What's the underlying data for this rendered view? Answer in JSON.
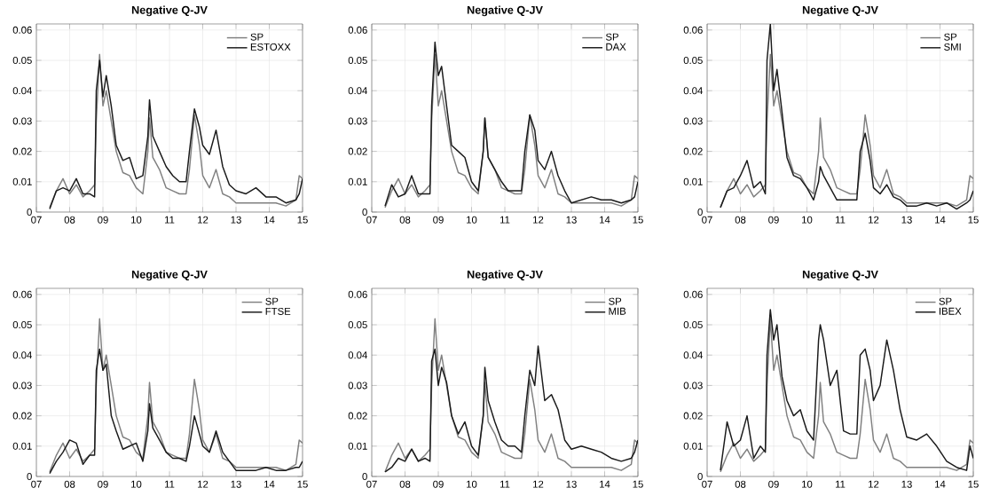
{
  "chart_data": [
    {
      "type": "line",
      "title": "Negative Q-JV",
      "x": [
        2007.4,
        2007.6,
        2007.8,
        2008.0,
        2008.2,
        2008.4,
        2008.6,
        2008.75,
        2008.8,
        2008.9,
        2009.0,
        2009.1,
        2009.25,
        2009.4,
        2009.6,
        2009.8,
        2010.0,
        2010.2,
        2010.35,
        2010.4,
        2010.5,
        2010.7,
        2010.9,
        2011.1,
        2011.3,
        2011.5,
        2011.6,
        2011.75,
        2011.9,
        2012.0,
        2012.2,
        2012.4,
        2012.6,
        2012.8,
        2013.0,
        2013.3,
        2013.6,
        2013.9,
        2014.2,
        2014.5,
        2014.8,
        2014.9,
        2015.0
      ],
      "xlim": [
        2007,
        2015
      ],
      "xticks": [
        {
          "value": 2007,
          "label": "07"
        },
        {
          "value": 2008,
          "label": "08"
        },
        {
          "value": 2009,
          "label": "09"
        },
        {
          "value": 2010,
          "label": "10"
        },
        {
          "value": 2011,
          "label": "11"
        },
        {
          "value": 2012,
          "label": "12"
        },
        {
          "value": 2013,
          "label": "13"
        },
        {
          "value": 2014,
          "label": "14"
        },
        {
          "value": 2015,
          "label": "15"
        }
      ],
      "ylim": [
        0,
        0.062
      ],
      "yticks": [
        0,
        0.01,
        0.02,
        0.03,
        0.04,
        0.05,
        0.06
      ],
      "grid": true,
      "legend": "top right",
      "series": [
        {
          "name": "SP",
          "color": "#808080",
          "values": [
            0.0015,
            0.007,
            0.011,
            0.006,
            0.009,
            0.005,
            0.007,
            0.009,
            0.03,
            0.052,
            0.035,
            0.04,
            0.03,
            0.02,
            0.013,
            0.012,
            0.008,
            0.006,
            0.02,
            0.031,
            0.018,
            0.014,
            0.008,
            0.007,
            0.006,
            0.006,
            0.014,
            0.032,
            0.022,
            0.012,
            0.008,
            0.014,
            0.006,
            0.005,
            0.003,
            0.003,
            0.003,
            0.003,
            0.003,
            0.002,
            0.004,
            0.012,
            0.011
          ]
        },
        {
          "name": "ESTOXX",
          "color": "#1a1a1a",
          "values": [
            0.001,
            0.007,
            0.008,
            0.007,
            0.011,
            0.006,
            0.006,
            0.005,
            0.04,
            0.05,
            0.038,
            0.045,
            0.035,
            0.022,
            0.017,
            0.018,
            0.011,
            0.012,
            0.025,
            0.037,
            0.025,
            0.02,
            0.015,
            0.012,
            0.01,
            0.01,
            0.02,
            0.034,
            0.028,
            0.022,
            0.019,
            0.027,
            0.015,
            0.009,
            0.007,
            0.006,
            0.008,
            0.005,
            0.005,
            0.003,
            0.004,
            0.006,
            0.011
          ]
        }
      ]
    },
    {
      "type": "line",
      "title": "Negative Q-JV",
      "x": [
        2007.4,
        2007.6,
        2007.8,
        2008.0,
        2008.2,
        2008.4,
        2008.6,
        2008.75,
        2008.8,
        2008.9,
        2009.0,
        2009.1,
        2009.25,
        2009.4,
        2009.6,
        2009.8,
        2010.0,
        2010.2,
        2010.35,
        2010.4,
        2010.5,
        2010.7,
        2010.9,
        2011.1,
        2011.3,
        2011.5,
        2011.6,
        2011.75,
        2011.9,
        2012.0,
        2012.2,
        2012.4,
        2012.6,
        2012.8,
        2013.0,
        2013.3,
        2013.6,
        2013.9,
        2014.2,
        2014.5,
        2014.8,
        2014.9,
        2015.0
      ],
      "xlim": [
        2007,
        2015
      ],
      "xticks": [
        {
          "value": 2007,
          "label": "07"
        },
        {
          "value": 2008,
          "label": "08"
        },
        {
          "value": 2009,
          "label": "09"
        },
        {
          "value": 2010,
          "label": "10"
        },
        {
          "value": 2011,
          "label": "11"
        },
        {
          "value": 2012,
          "label": "12"
        },
        {
          "value": 2013,
          "label": "13"
        },
        {
          "value": 2014,
          "label": "14"
        },
        {
          "value": 2015,
          "label": "15"
        }
      ],
      "ylim": [
        0,
        0.062
      ],
      "yticks": [
        0,
        0.01,
        0.02,
        0.03,
        0.04,
        0.05,
        0.06
      ],
      "grid": true,
      "legend": "top right",
      "series": [
        {
          "name": "SP",
          "color": "#808080",
          "values": [
            0.0015,
            0.007,
            0.011,
            0.006,
            0.009,
            0.005,
            0.007,
            0.009,
            0.03,
            0.052,
            0.035,
            0.04,
            0.03,
            0.02,
            0.013,
            0.012,
            0.008,
            0.006,
            0.02,
            0.031,
            0.018,
            0.014,
            0.008,
            0.007,
            0.006,
            0.006,
            0.014,
            0.032,
            0.022,
            0.012,
            0.008,
            0.014,
            0.006,
            0.005,
            0.003,
            0.003,
            0.003,
            0.003,
            0.003,
            0.002,
            0.004,
            0.012,
            0.011
          ]
        },
        {
          "name": "DAX",
          "color": "#1a1a1a",
          "values": [
            0.002,
            0.009,
            0.005,
            0.006,
            0.012,
            0.006,
            0.006,
            0.006,
            0.035,
            0.056,
            0.045,
            0.048,
            0.035,
            0.022,
            0.02,
            0.018,
            0.01,
            0.007,
            0.02,
            0.031,
            0.018,
            0.014,
            0.01,
            0.007,
            0.007,
            0.007,
            0.02,
            0.032,
            0.027,
            0.017,
            0.014,
            0.02,
            0.012,
            0.007,
            0.003,
            0.004,
            0.005,
            0.004,
            0.004,
            0.003,
            0.004,
            0.005,
            0.01
          ]
        }
      ]
    },
    {
      "type": "line",
      "title": "Negative Q-JV",
      "x": [
        2007.4,
        2007.6,
        2007.8,
        2008.0,
        2008.2,
        2008.4,
        2008.6,
        2008.75,
        2008.8,
        2008.9,
        2009.0,
        2009.1,
        2009.25,
        2009.4,
        2009.6,
        2009.8,
        2010.0,
        2010.2,
        2010.35,
        2010.4,
        2010.5,
        2010.7,
        2010.9,
        2011.1,
        2011.3,
        2011.5,
        2011.6,
        2011.75,
        2011.9,
        2012.0,
        2012.2,
        2012.4,
        2012.6,
        2012.8,
        2013.0,
        2013.3,
        2013.6,
        2013.9,
        2014.2,
        2014.5,
        2014.8,
        2014.9,
        2015.0
      ],
      "xlim": [
        2007,
        2015
      ],
      "xticks": [
        {
          "value": 2007,
          "label": "07"
        },
        {
          "value": 2008,
          "label": "08"
        },
        {
          "value": 2009,
          "label": "09"
        },
        {
          "value": 2010,
          "label": "10"
        },
        {
          "value": 2011,
          "label": "11"
        },
        {
          "value": 2012,
          "label": "12"
        },
        {
          "value": 2013,
          "label": "13"
        },
        {
          "value": 2014,
          "label": "14"
        },
        {
          "value": 2015,
          "label": "15"
        }
      ],
      "ylim": [
        0,
        0.062
      ],
      "yticks": [
        0,
        0.01,
        0.02,
        0.03,
        0.04,
        0.05,
        0.06
      ],
      "grid": true,
      "legend": "top right",
      "series": [
        {
          "name": "SP",
          "color": "#808080",
          "values": [
            0.0015,
            0.007,
            0.011,
            0.006,
            0.009,
            0.005,
            0.007,
            0.009,
            0.03,
            0.052,
            0.035,
            0.04,
            0.03,
            0.02,
            0.013,
            0.012,
            0.008,
            0.006,
            0.02,
            0.031,
            0.018,
            0.014,
            0.008,
            0.007,
            0.006,
            0.006,
            0.014,
            0.032,
            0.022,
            0.012,
            0.008,
            0.014,
            0.006,
            0.005,
            0.003,
            0.003,
            0.003,
            0.003,
            0.003,
            0.002,
            0.004,
            0.012,
            0.011
          ]
        },
        {
          "name": "SMI",
          "color": "#1a1a1a",
          "values": [
            0.0015,
            0.007,
            0.008,
            0.012,
            0.017,
            0.008,
            0.01,
            0.006,
            0.05,
            0.062,
            0.04,
            0.047,
            0.033,
            0.018,
            0.012,
            0.011,
            0.008,
            0.004,
            0.01,
            0.015,
            0.012,
            0.008,
            0.004,
            0.004,
            0.004,
            0.004,
            0.02,
            0.026,
            0.017,
            0.008,
            0.006,
            0.009,
            0.005,
            0.004,
            0.002,
            0.002,
            0.003,
            0.002,
            0.003,
            0.001,
            0.003,
            0.004,
            0.007
          ]
        }
      ]
    },
    {
      "type": "line",
      "title": "Negative Q-JV",
      "x": [
        2007.4,
        2007.6,
        2007.8,
        2008.0,
        2008.2,
        2008.4,
        2008.6,
        2008.75,
        2008.8,
        2008.9,
        2009.0,
        2009.1,
        2009.25,
        2009.4,
        2009.6,
        2009.8,
        2010.0,
        2010.2,
        2010.35,
        2010.4,
        2010.5,
        2010.7,
        2010.9,
        2011.1,
        2011.3,
        2011.5,
        2011.6,
        2011.75,
        2011.9,
        2012.0,
        2012.2,
        2012.4,
        2012.6,
        2012.8,
        2013.0,
        2013.3,
        2013.6,
        2013.9,
        2014.2,
        2014.5,
        2014.8,
        2014.9,
        2015.0
      ],
      "xlim": [
        2007,
        2015
      ],
      "xticks": [
        {
          "value": 2007,
          "label": "07"
        },
        {
          "value": 2008,
          "label": "08"
        },
        {
          "value": 2009,
          "label": "09"
        },
        {
          "value": 2010,
          "label": "10"
        },
        {
          "value": 2011,
          "label": "11"
        },
        {
          "value": 2012,
          "label": "12"
        },
        {
          "value": 2013,
          "label": "13"
        },
        {
          "value": 2014,
          "label": "14"
        },
        {
          "value": 2015,
          "label": "15"
        }
      ],
      "ylim": [
        0,
        0.062
      ],
      "yticks": [
        0,
        0.01,
        0.02,
        0.03,
        0.04,
        0.05,
        0.06
      ],
      "grid": true,
      "legend": "top right",
      "series": [
        {
          "name": "SP",
          "color": "#808080",
          "values": [
            0.0015,
            0.007,
            0.011,
            0.006,
            0.009,
            0.005,
            0.007,
            0.009,
            0.03,
            0.052,
            0.035,
            0.04,
            0.03,
            0.02,
            0.013,
            0.012,
            0.008,
            0.006,
            0.02,
            0.031,
            0.018,
            0.014,
            0.008,
            0.007,
            0.006,
            0.006,
            0.014,
            0.032,
            0.022,
            0.012,
            0.008,
            0.014,
            0.006,
            0.005,
            0.003,
            0.003,
            0.003,
            0.003,
            0.003,
            0.002,
            0.004,
            0.012,
            0.011
          ]
        },
        {
          "name": "FTSE",
          "color": "#1a1a1a",
          "values": [
            0.001,
            0.005,
            0.008,
            0.012,
            0.011,
            0.004,
            0.007,
            0.007,
            0.035,
            0.042,
            0.035,
            0.037,
            0.02,
            0.015,
            0.009,
            0.01,
            0.011,
            0.005,
            0.015,
            0.024,
            0.016,
            0.012,
            0.008,
            0.006,
            0.006,
            0.005,
            0.01,
            0.02,
            0.014,
            0.01,
            0.008,
            0.015,
            0.008,
            0.005,
            0.002,
            0.002,
            0.002,
            0.003,
            0.002,
            0.002,
            0.003,
            0.003,
            0.005
          ]
        }
      ]
    },
    {
      "type": "line",
      "title": "Negative Q-JV",
      "x": [
        2007.4,
        2007.6,
        2007.8,
        2008.0,
        2008.2,
        2008.4,
        2008.6,
        2008.75,
        2008.8,
        2008.9,
        2009.0,
        2009.1,
        2009.25,
        2009.4,
        2009.6,
        2009.8,
        2010.0,
        2010.2,
        2010.35,
        2010.4,
        2010.5,
        2010.7,
        2010.9,
        2011.1,
        2011.3,
        2011.5,
        2011.6,
        2011.75,
        2011.9,
        2012.0,
        2012.2,
        2012.4,
        2012.6,
        2012.8,
        2013.0,
        2013.3,
        2013.6,
        2013.9,
        2014.2,
        2014.5,
        2014.8,
        2014.9,
        2015.0
      ],
      "xlim": [
        2007,
        2015
      ],
      "xticks": [
        {
          "value": 2007,
          "label": "07"
        },
        {
          "value": 2008,
          "label": "08"
        },
        {
          "value": 2009,
          "label": "09"
        },
        {
          "value": 2010,
          "label": "10"
        },
        {
          "value": 2011,
          "label": "11"
        },
        {
          "value": 2012,
          "label": "12"
        },
        {
          "value": 2013,
          "label": "13"
        },
        {
          "value": 2014,
          "label": "14"
        },
        {
          "value": 2015,
          "label": "15"
        }
      ],
      "ylim": [
        0,
        0.062
      ],
      "yticks": [
        0,
        0.01,
        0.02,
        0.03,
        0.04,
        0.05,
        0.06
      ],
      "grid": true,
      "legend": "top right",
      "series": [
        {
          "name": "SP",
          "color": "#808080",
          "values": [
            0.0015,
            0.007,
            0.011,
            0.006,
            0.009,
            0.005,
            0.007,
            0.009,
            0.03,
            0.052,
            0.035,
            0.04,
            0.03,
            0.02,
            0.013,
            0.012,
            0.008,
            0.006,
            0.02,
            0.031,
            0.018,
            0.014,
            0.008,
            0.007,
            0.006,
            0.006,
            0.014,
            0.032,
            0.022,
            0.012,
            0.008,
            0.014,
            0.006,
            0.005,
            0.003,
            0.003,
            0.003,
            0.003,
            0.003,
            0.002,
            0.004,
            0.012,
            0.011
          ]
        },
        {
          "name": "MIB",
          "color": "#1a1a1a",
          "values": [
            0.0015,
            0.003,
            0.006,
            0.005,
            0.009,
            0.005,
            0.006,
            0.005,
            0.038,
            0.042,
            0.03,
            0.036,
            0.031,
            0.02,
            0.014,
            0.018,
            0.01,
            0.007,
            0.02,
            0.036,
            0.025,
            0.018,
            0.012,
            0.01,
            0.01,
            0.008,
            0.02,
            0.035,
            0.03,
            0.043,
            0.025,
            0.027,
            0.022,
            0.012,
            0.009,
            0.01,
            0.009,
            0.008,
            0.006,
            0.005,
            0.006,
            0.008,
            0.012
          ]
        }
      ]
    },
    {
      "type": "line",
      "title": "Negative Q-JV",
      "x": [
        2007.4,
        2007.6,
        2007.8,
        2008.0,
        2008.2,
        2008.4,
        2008.6,
        2008.75,
        2008.8,
        2008.9,
        2009.0,
        2009.1,
        2009.25,
        2009.4,
        2009.6,
        2009.8,
        2010.0,
        2010.2,
        2010.35,
        2010.4,
        2010.5,
        2010.7,
        2010.9,
        2011.1,
        2011.3,
        2011.5,
        2011.6,
        2011.75,
        2011.9,
        2012.0,
        2012.2,
        2012.4,
        2012.6,
        2012.8,
        2013.0,
        2013.3,
        2013.6,
        2013.9,
        2014.2,
        2014.5,
        2014.8,
        2014.9,
        2015.0
      ],
      "xlim": [
        2007,
        2015
      ],
      "xticks": [
        {
          "value": 2007,
          "label": "07"
        },
        {
          "value": 2008,
          "label": "08"
        },
        {
          "value": 2009,
          "label": "09"
        },
        {
          "value": 2010,
          "label": "10"
        },
        {
          "value": 2011,
          "label": "11"
        },
        {
          "value": 2012,
          "label": "12"
        },
        {
          "value": 2013,
          "label": "13"
        },
        {
          "value": 2014,
          "label": "14"
        },
        {
          "value": 2015,
          "label": "15"
        }
      ],
      "ylim": [
        0,
        0.062
      ],
      "yticks": [
        0,
        0.01,
        0.02,
        0.03,
        0.04,
        0.05,
        0.06
      ],
      "grid": true,
      "legend": "top right",
      "series": [
        {
          "name": "SP",
          "color": "#808080",
          "values": [
            0.0015,
            0.007,
            0.011,
            0.006,
            0.009,
            0.005,
            0.007,
            0.009,
            0.03,
            0.052,
            0.035,
            0.04,
            0.03,
            0.02,
            0.013,
            0.012,
            0.008,
            0.006,
            0.02,
            0.031,
            0.018,
            0.014,
            0.008,
            0.007,
            0.006,
            0.006,
            0.014,
            0.032,
            0.022,
            0.012,
            0.008,
            0.014,
            0.006,
            0.005,
            0.003,
            0.003,
            0.003,
            0.003,
            0.003,
            0.002,
            0.004,
            0.012,
            0.011
          ]
        },
        {
          "name": "IBEX",
          "color": "#1a1a1a",
          "values": [
            0.002,
            0.018,
            0.01,
            0.012,
            0.02,
            0.006,
            0.01,
            0.008,
            0.04,
            0.055,
            0.045,
            0.05,
            0.033,
            0.025,
            0.02,
            0.022,
            0.015,
            0.012,
            0.045,
            0.05,
            0.045,
            0.03,
            0.035,
            0.015,
            0.014,
            0.014,
            0.04,
            0.042,
            0.035,
            0.025,
            0.03,
            0.045,
            0.035,
            0.022,
            0.013,
            0.012,
            0.014,
            0.01,
            0.005,
            0.003,
            0.002,
            0.01,
            0.006
          ]
        }
      ]
    }
  ]
}
